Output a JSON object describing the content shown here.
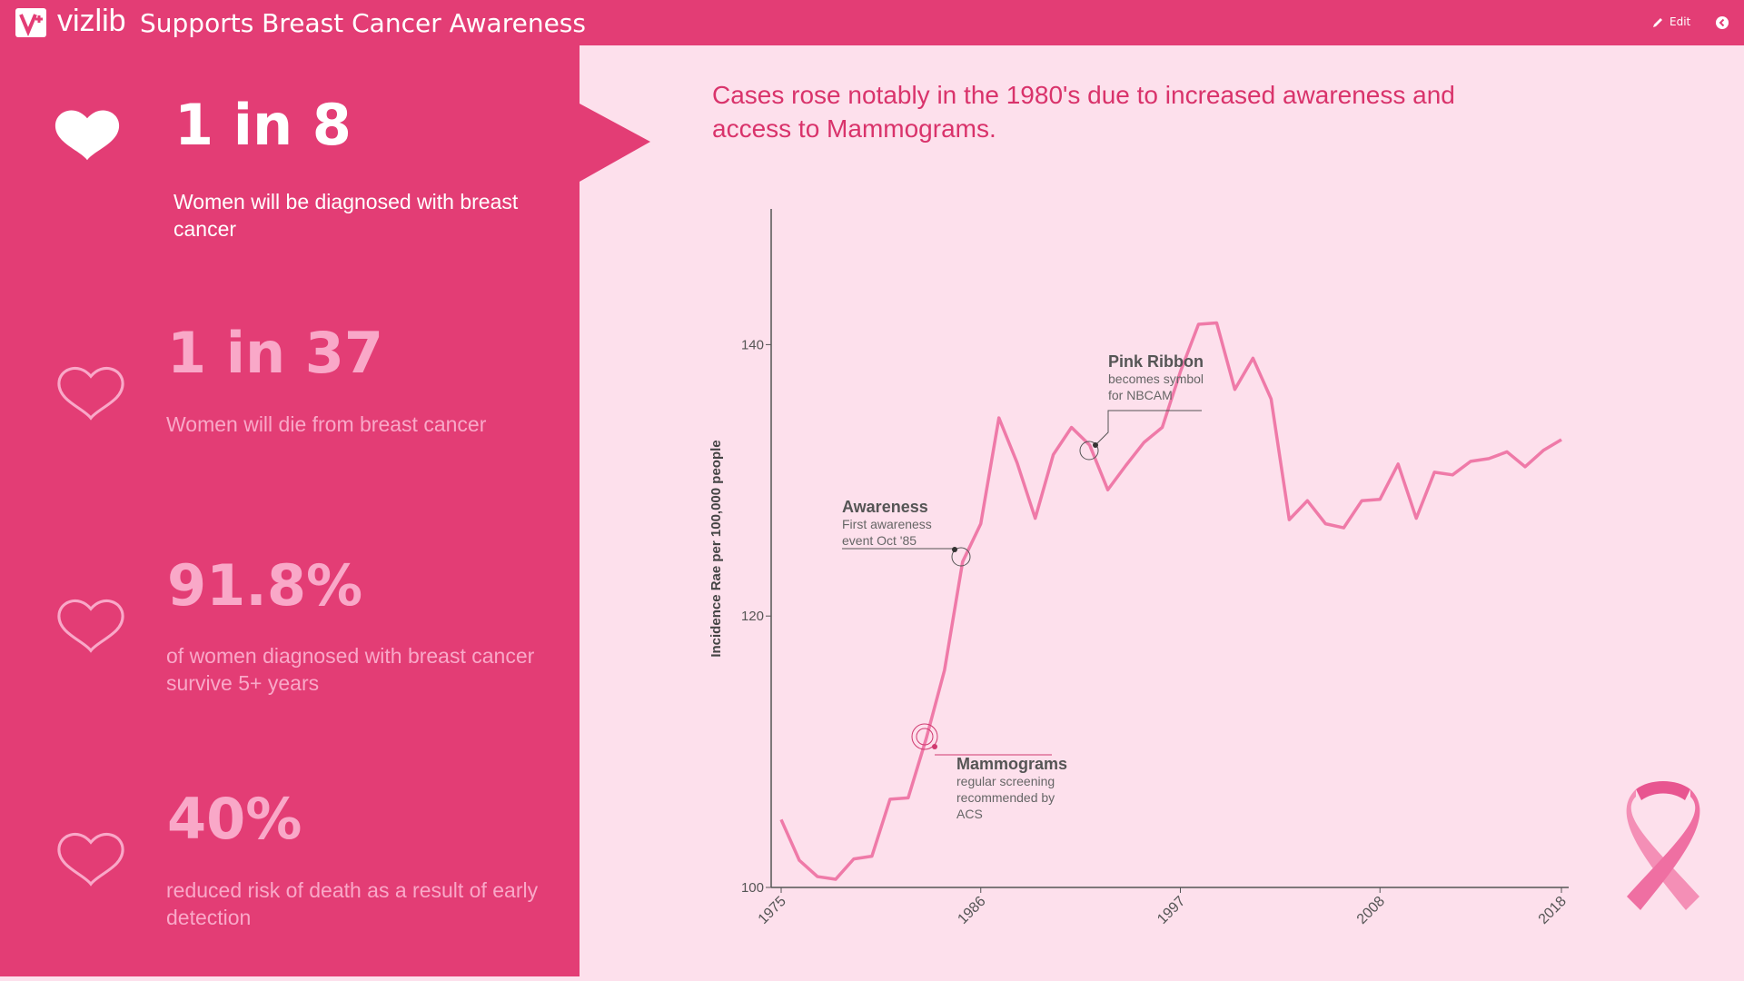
{
  "header": {
    "logo": "vizlib",
    "title": "Supports Breast Cancer Awareness",
    "edit": "Edit"
  },
  "stats": [
    {
      "value": "1 in 8",
      "text": "Women will be diagnosed with breast cancer"
    },
    {
      "value": "1 in 37",
      "text": "Women will die from breast cancer"
    },
    {
      "value": "91.8%",
      "text": "of women diagnosed with breast cancer survive 5+ years"
    },
    {
      "value": "40%",
      "text": "reduced risk of death as a result of early detection"
    }
  ],
  "headline": "Cases rose notably in the 1980's due to increased awareness and access to Mammograms.",
  "chart_data": {
    "type": "line",
    "y_label": "Incidence Rae per 100,000 people",
    "color": "#ef7aa8",
    "x": [
      1975,
      1976,
      1977,
      1978,
      1979,
      1980,
      1981,
      1982,
      1983,
      1984,
      1985,
      1986,
      1987,
      1988,
      1989,
      1990,
      1991,
      1992,
      1993,
      1994,
      1995,
      1996,
      1997,
      1998,
      1999,
      2000,
      2001,
      2002,
      2003,
      2004,
      2005,
      2006,
      2007,
      2008,
      2009,
      2010,
      2011,
      2012,
      2013,
      2014,
      2015,
      2016,
      2017,
      2018
    ],
    "values": [
      105.0,
      102.0,
      100.8,
      100.6,
      102.1,
      102.3,
      106.5,
      106.6,
      111.0,
      116.0,
      124.0,
      126.8,
      134.6,
      131.3,
      127.2,
      131.9,
      133.9,
      132.6,
      129.3,
      131.1,
      132.8,
      133.9,
      138.0,
      141.5,
      141.6,
      136.7,
      139.0,
      136.0,
      127.1,
      128.5,
      126.8,
      126.5,
      128.5,
      128.6,
      131.2,
      127.2,
      130.6,
      130.4,
      131.4,
      131.6,
      132.1,
      131.0,
      132.2,
      133.0
    ],
    "xlim": [
      1975,
      2018
    ],
    "xticks": [
      1975,
      1986,
      1997,
      2008,
      2018
    ],
    "ylim": [
      100,
      150
    ],
    "yticks": [
      100,
      120,
      140
    ],
    "annotations": [
      {
        "title": "Awareness",
        "lines": [
          "First awareness",
          "event Oct '85"
        ]
      },
      {
        "title": "Pink Ribbon",
        "lines": [
          "becomes symbol",
          "for NBCAM"
        ]
      },
      {
        "title": "Mammograms",
        "lines": [
          "regular screening",
          "recommended by",
          "ACS"
        ]
      }
    ]
  }
}
